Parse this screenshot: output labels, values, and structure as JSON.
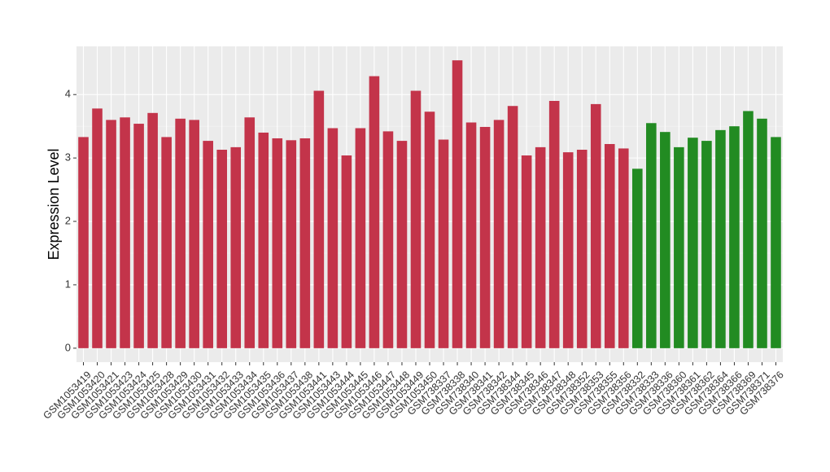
{
  "chart_data": {
    "type": "bar",
    "y_label": "Expression Level",
    "categories": [
      "GSM1053419",
      "GSM1053420",
      "GSM1053421",
      "GSM1053423",
      "GSM1053424",
      "GSM1053425",
      "GSM1053428",
      "GSM1053429",
      "GSM1053430",
      "GSM1053431",
      "GSM1053432",
      "GSM1053433",
      "GSM1053434",
      "GSM1053435",
      "GSM1053436",
      "GSM1053437",
      "GSM1053438",
      "GSM1053441",
      "GSM1053443",
      "GSM1053444",
      "GSM1053445",
      "GSM1053446",
      "GSM1053447",
      "GSM1053448",
      "GSM1053449",
      "GSM1053450",
      "GSM738337",
      "GSM738338",
      "GSM738340",
      "GSM738341",
      "GSM738342",
      "GSM738344",
      "GSM738345",
      "GSM738346",
      "GSM738347",
      "GSM738348",
      "GSM738352",
      "GSM738353",
      "GSM738355",
      "GSM738356",
      "GSM738332",
      "GSM738333",
      "GSM738336",
      "GSM738360",
      "GSM738361",
      "GSM738362",
      "GSM738364",
      "GSM738366",
      "GSM738369",
      "GSM738371",
      "GSM738376"
    ],
    "values": [
      3.33,
      3.78,
      3.6,
      3.64,
      3.54,
      3.71,
      3.33,
      3.62,
      3.6,
      3.27,
      3.13,
      3.17,
      3.64,
      3.4,
      3.31,
      3.28,
      3.31,
      4.06,
      3.47,
      3.04,
      3.47,
      4.29,
      3.42,
      3.27,
      4.06,
      3.73,
      3.29,
      4.54,
      3.56,
      3.49,
      3.6,
      3.82,
      3.04,
      3.17,
      3.9,
      3.09,
      3.13,
      3.85,
      3.22,
      3.15,
      2.83,
      3.55,
      3.41,
      3.17,
      3.32,
      3.27,
      3.44,
      3.5,
      3.74,
      3.62,
      3.33
    ],
    "colors": [
      "#c3344a",
      "#c3344a",
      "#c3344a",
      "#c3344a",
      "#c3344a",
      "#c3344a",
      "#c3344a",
      "#c3344a",
      "#c3344a",
      "#c3344a",
      "#c3344a",
      "#c3344a",
      "#c3344a",
      "#c3344a",
      "#c3344a",
      "#c3344a",
      "#c3344a",
      "#c3344a",
      "#c3344a",
      "#c3344a",
      "#c3344a",
      "#c3344a",
      "#c3344a",
      "#c3344a",
      "#c3344a",
      "#c3344a",
      "#c3344a",
      "#c3344a",
      "#c3344a",
      "#c3344a",
      "#c3344a",
      "#c3344a",
      "#c3344a",
      "#c3344a",
      "#c3344a",
      "#c3344a",
      "#c3344a",
      "#c3344a",
      "#c3344a",
      "#c3344a",
      "#228b22",
      "#228b22",
      "#228b22",
      "#228b22",
      "#228b22",
      "#228b22",
      "#228b22",
      "#228b22",
      "#228b22",
      "#228b22",
      "#228b22"
    ],
    "ylim": [
      -0.22,
      4.76
    ],
    "yticks": [
      0,
      1,
      2,
      3,
      4
    ],
    "grid": true
  }
}
